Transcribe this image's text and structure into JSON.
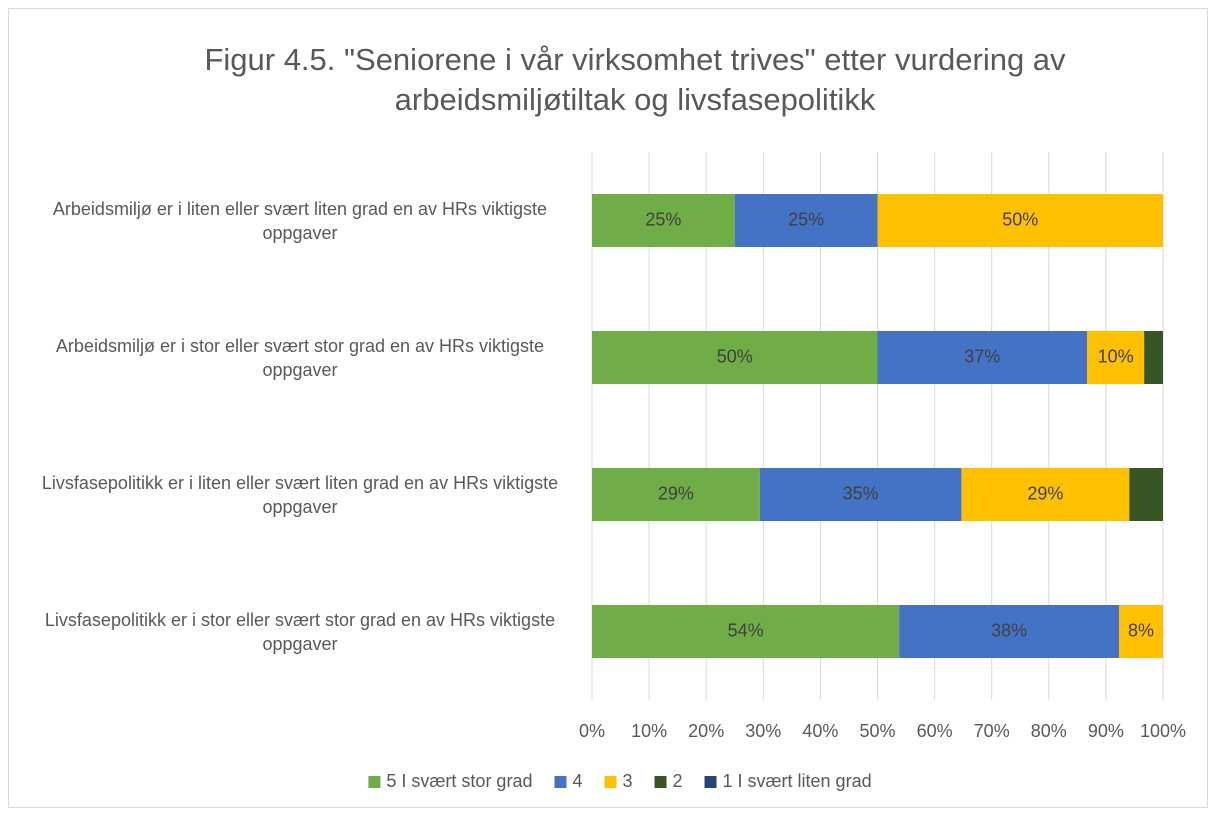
{
  "chart_data": {
    "type": "stacked-barh",
    "title": "Figur 4.5. \"Seniorene i vår virksomhet trives\" etter vurdering av arbeidsmiljøtiltak og livsfasepolitikk",
    "categories": [
      "Arbeidsmiljø er i liten eller svært liten grad en av HRs viktigste oppgaver",
      "Arbeidsmiljø er i stor eller svært stor grad en av HRs viktigste oppgaver",
      "Livsfasepolitikk er i liten eller svært liten grad en av HRs viktigste oppgaver",
      "Livsfasepolitikk er i stor eller svært stor grad en av HRs viktigste oppgaver"
    ],
    "series": [
      {
        "name": "5 I svært stor grad",
        "color": "#70ad47",
        "values": [
          25,
          50,
          29.4,
          53.8
        ],
        "value_labels": [
          "25%",
          "50%",
          "29%",
          "54%"
        ]
      },
      {
        "name": "4",
        "color": "#4472c4",
        "values": [
          25,
          36.7,
          35.3,
          38.5
        ],
        "value_labels": [
          "25%",
          "37%",
          "35%",
          "38%"
        ]
      },
      {
        "name": "3",
        "color": "#ffc000",
        "values": [
          50,
          10,
          29.4,
          7.7
        ],
        "value_labels": [
          "50%",
          "10%",
          "29%",
          "8%"
        ]
      },
      {
        "name": "2",
        "color": "#375623",
        "values": [
          0,
          3.3,
          5.9,
          0
        ]
      },
      {
        "name": "1 I svært liten grad",
        "color": "#264478",
        "values": [
          0,
          0,
          0,
          0
        ]
      }
    ],
    "xlim": [
      0,
      100
    ],
    "xticks": [
      {
        "value": 0,
        "label": "0%"
      },
      {
        "value": 10,
        "label": "10%"
      },
      {
        "value": 20,
        "label": "20%"
      },
      {
        "value": 30,
        "label": "30%"
      },
      {
        "value": 40,
        "label": "40%"
      },
      {
        "value": 50,
        "label": "50%"
      },
      {
        "value": 60,
        "label": "60%"
      },
      {
        "value": 70,
        "label": "70%"
      },
      {
        "value": 80,
        "label": "80%"
      },
      {
        "value": 90,
        "label": "90%"
      },
      {
        "value": 100,
        "label": "100%"
      }
    ],
    "grid": true,
    "legend": "bottom"
  }
}
